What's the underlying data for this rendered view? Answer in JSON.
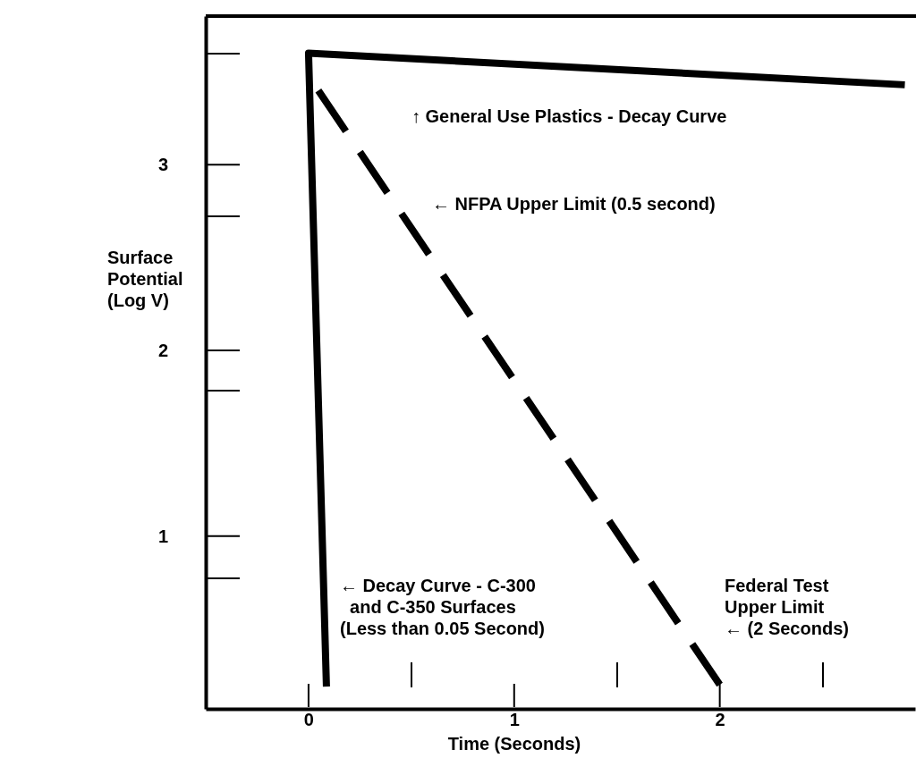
{
  "chart_data": {
    "type": "line",
    "xlabel": "Time (Seconds)",
    "ylabel": "Surface\nPotential\n(Log V)",
    "xlim": [
      -0.5,
      2.95
    ],
    "ylim": [
      0.07,
      3.8
    ],
    "xticks": [
      0,
      1,
      2
    ],
    "yticks": [
      1,
      2,
      3
    ],
    "grid": false,
    "series": [
      {
        "color": "#000000",
        "x": [
          0.087,
          0,
          2.9
        ],
        "values": [
          0.19,
          3.6,
          3.43
        ],
        "line_style": "solid"
      },
      {
        "color": "#000000",
        "x": [
          0.035,
          2.0
        ],
        "values": [
          3.42,
          0.2
        ],
        "line_style": "dashed"
      }
    ],
    "annotations": [
      "↑ General Use Plastics - Decay Curve",
      "← NFPA Upper Limit (0.5 second)",
      "← Decay Curve - C-300\n  and C-350 Surfaces\n(Less than 0.05 Second)",
      "Federal Test\nUpper Limit\n← (2 Seconds)"
    ]
  }
}
